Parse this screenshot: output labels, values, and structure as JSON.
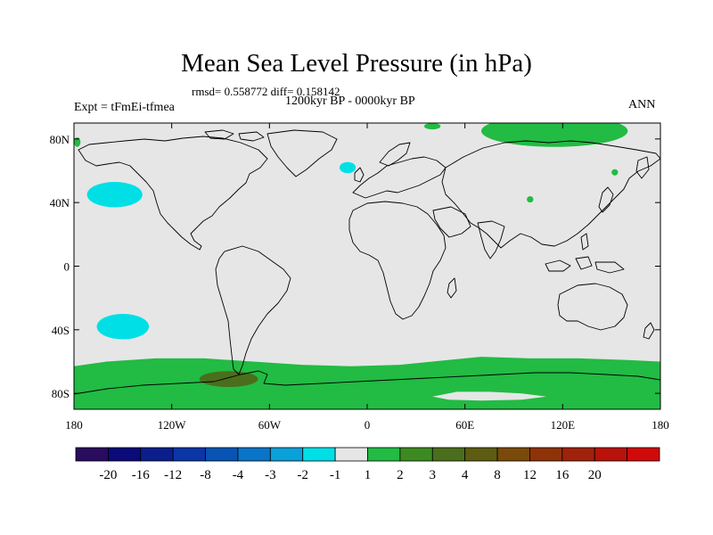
{
  "title": "Mean Sea Level Pressure (in hPa)",
  "stats_line": "rmsd= 0.558772  diff= 0.158142",
  "period_line": "1200kyr BP - 0000kyr BP",
  "experiment_label": "Expt = tFmEi-tfmea",
  "season_label": "ANN",
  "map": {
    "projection": "cylindrical-equidistant",
    "lon_range": [
      -180,
      180
    ],
    "lat_range": [
      -90,
      90
    ],
    "ocean_color": "#e6e6e6",
    "y_ticks": [
      {
        "lat": 80,
        "label": "80N"
      },
      {
        "lat": 40,
        "label": "40N"
      },
      {
        "lat": 0,
        "label": "0"
      },
      {
        "lat": -40,
        "label": "40S"
      },
      {
        "lat": -80,
        "label": "80S"
      }
    ],
    "x_ticks": [
      {
        "lon": -180,
        "label": "180"
      },
      {
        "lon": -120,
        "label": "120W"
      },
      {
        "lon": -60,
        "label": "60W"
      },
      {
        "lon": 0,
        "label": "0"
      },
      {
        "lon": 60,
        "label": "60E"
      },
      {
        "lon": 120,
        "label": "120E"
      },
      {
        "lon": 180,
        "label": "180"
      }
    ]
  },
  "anomaly_regions": [
    {
      "name": "north-pacific-negative",
      "level": "-2 to -1",
      "color": "#00dfe6",
      "center": [
        -155,
        45
      ],
      "radii": [
        17,
        8
      ]
    },
    {
      "name": "north-atlantic-negative",
      "level": "-2 to -1",
      "color": "#00dfe6",
      "center": [
        -12,
        62
      ],
      "radii": [
        5,
        3.5
      ]
    },
    {
      "name": "south-pacific-negative",
      "level": "-2 to -1",
      "color": "#00dfe6",
      "center": [
        -150,
        -38
      ],
      "radii": [
        16,
        8
      ]
    },
    {
      "name": "arctic-siberia-positive",
      "level": "1 to 2",
      "color": "#22bb44",
      "center": [
        115,
        85
      ],
      "radii": [
        45,
        10
      ]
    },
    {
      "name": "arctic-small-positive",
      "level": "1 to 2",
      "color": "#22bb44",
      "center": [
        40,
        88
      ],
      "radii": [
        5,
        2
      ]
    },
    {
      "name": "central-asia-positive",
      "level": "1 to 2",
      "color": "#22bb44",
      "center": [
        100,
        42
      ],
      "radii": [
        2,
        2
      ]
    },
    {
      "name": "east-siberia-positive",
      "level": "1 to 2",
      "color": "#22bb44",
      "center": [
        152,
        59
      ],
      "radii": [
        2,
        2
      ]
    },
    {
      "name": "west-edge-positive",
      "level": "1 to 2",
      "color": "#22bb44",
      "center": [
        -178,
        78
      ],
      "radii": [
        2,
        3
      ]
    },
    {
      "name": "antarctica-positive",
      "level": "1 to 2",
      "color": "#22bb44"
    },
    {
      "name": "bellingshausen-positive",
      "level": "3 to 4",
      "color": "#4a6e1c",
      "center": [
        -85,
        -71
      ],
      "radii": [
        18,
        5
      ]
    },
    {
      "name": "east-antarctica-near-zero",
      "level": "-1 to 1",
      "color": "#e6e6e6"
    }
  ],
  "colorbar": {
    "colors": [
      "#2a0c5e",
      "#0a0a7a",
      "#0b1f8c",
      "#0a36a6",
      "#0754b5",
      "#0a74c8",
      "#0aa0d8",
      "#00dfe6",
      "#e6e6e6",
      "#22bb44",
      "#3e8a22",
      "#4a6e1c",
      "#5d5c12",
      "#7a4a0a",
      "#8e3308",
      "#a0220a",
      "#b8120a",
      "#d00a0a"
    ],
    "labels": [
      "-20",
      "-16",
      "-12",
      "-8",
      "-4",
      "-3",
      "-2",
      "-1",
      "1",
      "2",
      "3",
      "4",
      "8",
      "12",
      "16",
      "20"
    ]
  }
}
